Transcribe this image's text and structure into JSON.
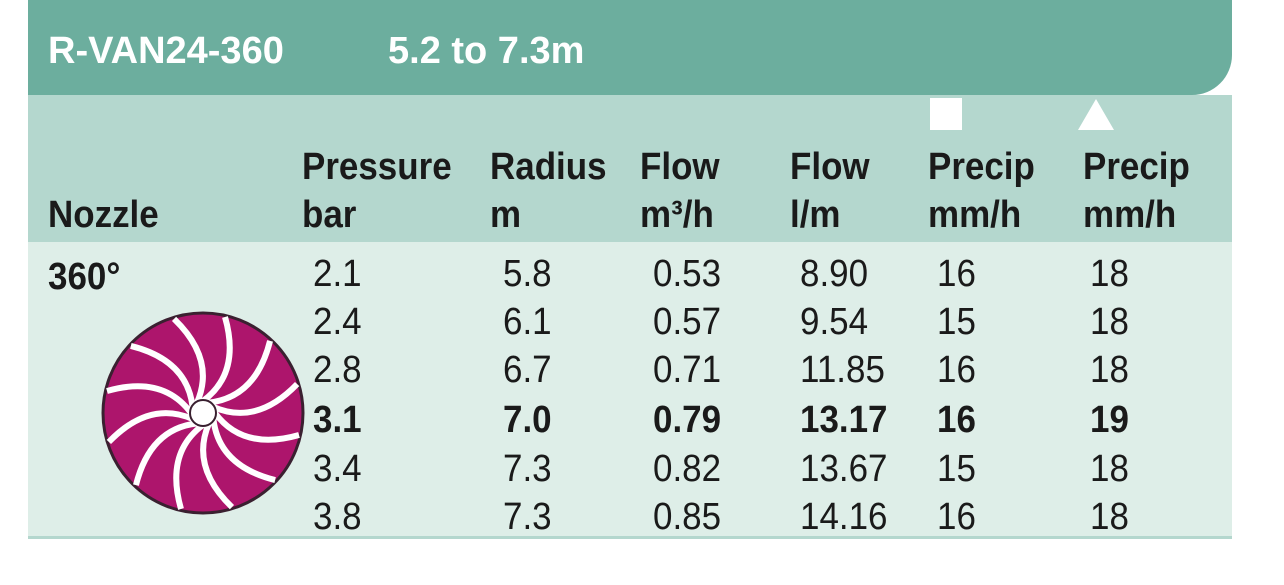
{
  "header": {
    "title": "R-VAN24-360",
    "range": "5.2 to 7.3m"
  },
  "table": {
    "row_label": "360°",
    "columns": [
      [
        "Nozzle"
      ],
      [
        "Pressure",
        "bar"
      ],
      [
        "Radius",
        "m"
      ],
      [
        "Flow",
        "m³/h"
      ],
      [
        "Flow",
        "l/m"
      ],
      [
        "Precip",
        "mm/h"
      ],
      [
        "Precip",
        "mm/h"
      ]
    ],
    "rows": [
      [
        "2.1",
        "5.8",
        "0.53",
        "8.90",
        "16",
        "18"
      ],
      [
        "2.4",
        "6.1",
        "0.57",
        "9.54",
        "15",
        "18"
      ],
      [
        "2.8",
        "6.7",
        "0.71",
        "11.85",
        "16",
        "18"
      ],
      [
        "3.1",
        "7.0",
        "0.79",
        "13.17",
        "16",
        "19"
      ],
      [
        "3.4",
        "7.3",
        "0.82",
        "13.67",
        "15",
        "18"
      ],
      [
        "3.8",
        "7.3",
        "0.85",
        "14.16",
        "16",
        "18"
      ]
    ]
  }
}
